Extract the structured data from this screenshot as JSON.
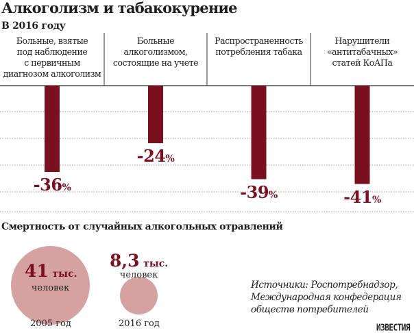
{
  "header": {
    "title": "Алкоголизм и табакокурение",
    "subtitle": "В 2016 году"
  },
  "chart_data": {
    "type": "bar",
    "title": "Алкоголизм и табакокурение",
    "subtitle": "В 2016 году",
    "categories": [
      [
        "Больные, взятые",
        "под наблюдение",
        "с первичным",
        "диагнозом алкоголизм"
      ],
      [
        "Больные",
        "алкоголизмом,",
        "состоящие на учете"
      ],
      [
        "Распространенность",
        "потребления табака"
      ],
      [
        "Нарушители",
        "«антитабачных»",
        "статей КоАПа"
      ]
    ],
    "values": [
      -36,
      -24,
      -39,
      -41
    ],
    "value_labels": [
      "-36",
      "-24",
      "-39",
      "-41"
    ],
    "unit": "%",
    "ylim": [
      -45,
      0
    ],
    "grid": true,
    "bar_color": "#7b1020"
  },
  "mortality": {
    "title": "Смертность от случайных алкогольных отравлений",
    "items": [
      {
        "value": "41",
        "unit": "тыс.",
        "unit2": "человек",
        "year": "2005 год"
      },
      {
        "value": "8,3",
        "unit": "тыс.",
        "unit2": "человек",
        "year": "2016 год"
      }
    ],
    "circle_color": "#d6a2a1"
  },
  "sources": {
    "lines": [
      "Источники: Роспотребнадзор,",
      "Международная конфедерация",
      "обществ потребителей"
    ]
  },
  "brand": "ИЗВЕСТИЯ"
}
